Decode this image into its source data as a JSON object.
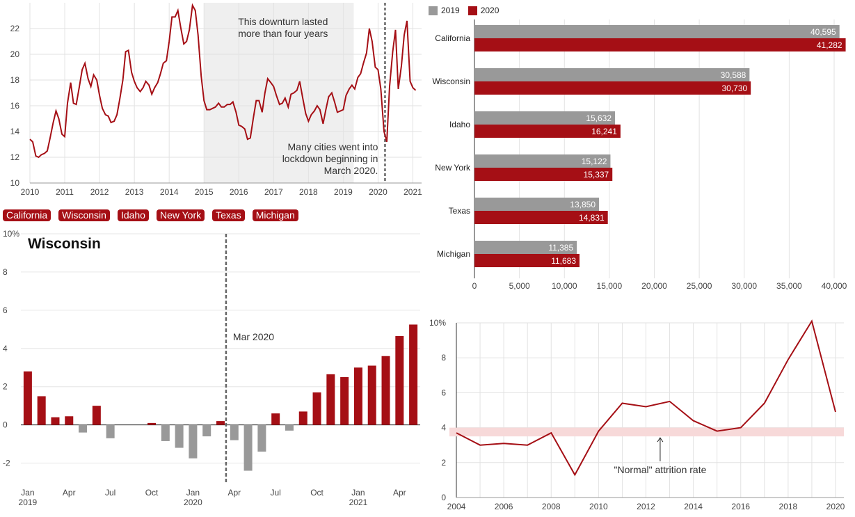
{
  "colors": {
    "accent": "#a50f15",
    "gray": "#999999",
    "band": "#efefef",
    "normal_band": "#f7d9d9"
  },
  "state_buttons": [
    "California",
    "Wisconsin",
    "Idaho",
    "New York",
    "Texas",
    "Michigan"
  ],
  "chart_data": [
    {
      "type": "line",
      "x": [
        2010.0,
        2010.08,
        2010.17,
        2010.25,
        2010.33,
        2010.42,
        2010.5,
        2010.58,
        2010.67,
        2010.75,
        2010.83,
        2010.92,
        2011.0,
        2011.08,
        2011.17,
        2011.25,
        2011.33,
        2011.42,
        2011.5,
        2011.58,
        2011.67,
        2011.75,
        2011.83,
        2011.92,
        2012.0,
        2012.08,
        2012.17,
        2012.25,
        2012.33,
        2012.42,
        2012.5,
        2012.58,
        2012.67,
        2012.75,
        2012.83,
        2012.92,
        2013.0,
        2013.08,
        2013.17,
        2013.25,
        2013.33,
        2013.42,
        2013.5,
        2013.58,
        2013.67,
        2013.75,
        2013.83,
        2013.92,
        2014.0,
        2014.08,
        2014.17,
        2014.25,
        2014.33,
        2014.42,
        2014.5,
        2014.58,
        2014.67,
        2014.75,
        2014.83,
        2014.92,
        2015.0,
        2015.08,
        2015.17,
        2015.25,
        2015.33,
        2015.42,
        2015.5,
        2015.58,
        2015.67,
        2015.75,
        2015.83,
        2015.92,
        2016.0,
        2016.08,
        2016.17,
        2016.25,
        2016.33,
        2016.42,
        2016.5,
        2016.58,
        2016.67,
        2016.75,
        2016.83,
        2016.92,
        2017.0,
        2017.08,
        2017.17,
        2017.25,
        2017.33,
        2017.42,
        2017.5,
        2017.58,
        2017.67,
        2017.75,
        2017.83,
        2017.92,
        2018.0,
        2018.08,
        2018.17,
        2018.25,
        2018.33,
        2018.42,
        2018.5,
        2018.58,
        2018.67,
        2018.75,
        2018.83,
        2018.92,
        2019.0,
        2019.08,
        2019.17,
        2019.25,
        2019.33,
        2019.42,
        2019.5,
        2019.58,
        2019.67,
        2019.75,
        2019.83,
        2019.92,
        2020.0,
        2020.08,
        2020.17,
        2020.25,
        2020.33,
        2020.42,
        2020.5,
        2020.58,
        2020.67,
        2020.75,
        2020.83,
        2020.92,
        2021.0,
        2021.08
      ],
      "values": [
        13.4,
        13.2,
        12.1,
        12.0,
        12.2,
        12.3,
        12.5,
        13.5,
        14.7,
        15.6,
        15.0,
        13.8,
        13.6,
        16.2,
        17.8,
        16.2,
        16.1,
        17.5,
        18.8,
        19.3,
        18.1,
        17.5,
        18.4,
        18.0,
        16.8,
        15.8,
        15.3,
        15.2,
        14.7,
        14.8,
        15.3,
        16.5,
        18.0,
        20.2,
        20.3,
        18.6,
        17.9,
        17.4,
        17.1,
        17.4,
        17.9,
        17.6,
        16.9,
        17.4,
        17.8,
        18.5,
        19.3,
        19.5,
        21.0,
        22.9,
        22.9,
        23.4,
        22.1,
        20.8,
        21.0,
        21.9,
        23.8,
        23.4,
        21.5,
        18.3,
        16.4,
        15.7,
        15.7,
        15.8,
        15.9,
        16.2,
        15.9,
        15.9,
        16.1,
        16.1,
        16.3,
        15.5,
        14.5,
        14.4,
        14.2,
        13.4,
        13.5,
        15.1,
        16.4,
        16.4,
        15.5,
        17.0,
        18.1,
        17.8,
        17.5,
        16.8,
        16.1,
        16.2,
        16.6,
        15.9,
        16.9,
        17.0,
        17.2,
        17.9,
        16.7,
        15.4,
        14.8,
        15.3,
        15.6,
        16.0,
        15.7,
        14.6,
        15.7,
        16.7,
        17.0,
        16.3,
        15.5,
        15.6,
        15.7,
        16.8,
        17.3,
        17.6,
        17.3,
        18.2,
        18.5,
        19.3,
        20.1,
        22.0,
        21.0,
        19.0,
        18.8,
        17.3,
        14.0,
        13.2,
        17.5,
        20.2,
        21.9,
        17.3,
        19.1,
        21.5,
        22.6,
        17.9,
        17.4,
        17.2
      ],
      "xlim": [
        2010,
        2021.25
      ],
      "ylim": [
        10,
        24
      ],
      "xticks": [
        "2010",
        "2011",
        "2012",
        "2013",
        "2014",
        "2015",
        "2016",
        "2017",
        "2018",
        "2019",
        "2020",
        "2021"
      ],
      "yticks": [
        "10",
        "12",
        "14",
        "16",
        "18",
        "20",
        "22"
      ],
      "band_range": [
        2015.0,
        2019.3
      ],
      "band_text": [
        "This downturn lasted",
        "more than four years"
      ],
      "lockdown_x": 2020.2,
      "lockdown_text": [
        "Many cities went into",
        "lockdown beginning in",
        "March 2020."
      ]
    },
    {
      "type": "bar",
      "orientation": "horizontal",
      "categories": [
        "California",
        "Wisconsin",
        "Idaho",
        "New York",
        "Texas",
        "Michigan"
      ],
      "series": [
        {
          "name": "2019",
          "values": [
            40595,
            30588,
            15632,
            15122,
            13850,
            11385
          ],
          "labels": [
            "40,595",
            "30,588",
            "15,632",
            "15,122",
            "13,850",
            "11,385"
          ]
        },
        {
          "name": "2020",
          "values": [
            41282,
            30730,
            16241,
            15337,
            14831,
            11683
          ],
          "labels": [
            "41,282",
            "30,730",
            "16,241",
            "15,337",
            "14,831",
            "11,683"
          ]
        }
      ],
      "xlim": [
        0,
        40000
      ],
      "xticks": [
        "0",
        "5,000",
        "10,000",
        "15,000",
        "20,000",
        "25,000",
        "30,000",
        "35,000",
        "40,000"
      ],
      "legend": "top-left"
    },
    {
      "type": "bar",
      "title": "Wisconsin",
      "values": [
        2.8,
        1.5,
        0.4,
        0.45,
        -0.4,
        1.0,
        -0.7,
        0,
        0,
        0.1,
        -0.85,
        -1.2,
        -1.75,
        -0.6,
        0.2,
        -0.8,
        -2.4,
        -1.4,
        0.6,
        -0.3,
        0.7,
        1.7,
        2.65,
        2.5,
        3.0,
        3.1,
        3.6,
        4.65,
        5.25
      ],
      "ylim": [
        -3,
        10
      ],
      "yticks": [
        "-2",
        "0",
        "2",
        "4",
        "6",
        "8",
        "10%"
      ],
      "xticks": [
        {
          "month": "Jan",
          "year": "2019"
        },
        {
          "month": "Apr",
          "year": ""
        },
        {
          "month": "Jul",
          "year": ""
        },
        {
          "month": "Oct",
          "year": ""
        },
        {
          "month": "Jan",
          "year": "2020"
        },
        {
          "month": "Apr",
          "year": ""
        },
        {
          "month": "Jul",
          "year": ""
        },
        {
          "month": "Oct",
          "year": ""
        },
        {
          "month": "Jan",
          "year": "2021"
        },
        {
          "month": "Apr",
          "year": ""
        }
      ],
      "marker_index": 14.4,
      "marker_text": "Mar 2020"
    },
    {
      "type": "line",
      "x": [
        2004,
        2005,
        2006,
        2007,
        2008,
        2009,
        2010,
        2011,
        2012,
        2013,
        2014,
        2015,
        2016,
        2017,
        2018,
        2019,
        2020
      ],
      "values": [
        3.7,
        3.0,
        3.1,
        3.0,
        3.7,
        1.3,
        3.8,
        5.4,
        5.2,
        5.5,
        4.4,
        3.8,
        4.0,
        5.4,
        7.9,
        10.1,
        4.9
      ],
      "xlim": [
        2004,
        2020
      ],
      "ylim": [
        0,
        10
      ],
      "xticks": [
        "2004",
        "2006",
        "2008",
        "2010",
        "2012",
        "2014",
        "2016",
        "2018",
        "2020"
      ],
      "yticks": [
        "0",
        "2",
        "4",
        "6",
        "8",
        "10%"
      ],
      "normal_band": [
        3.5,
        4.0
      ],
      "annotation": "\"Normal\" attrition rate",
      "annotation_x": 2012.6
    }
  ]
}
